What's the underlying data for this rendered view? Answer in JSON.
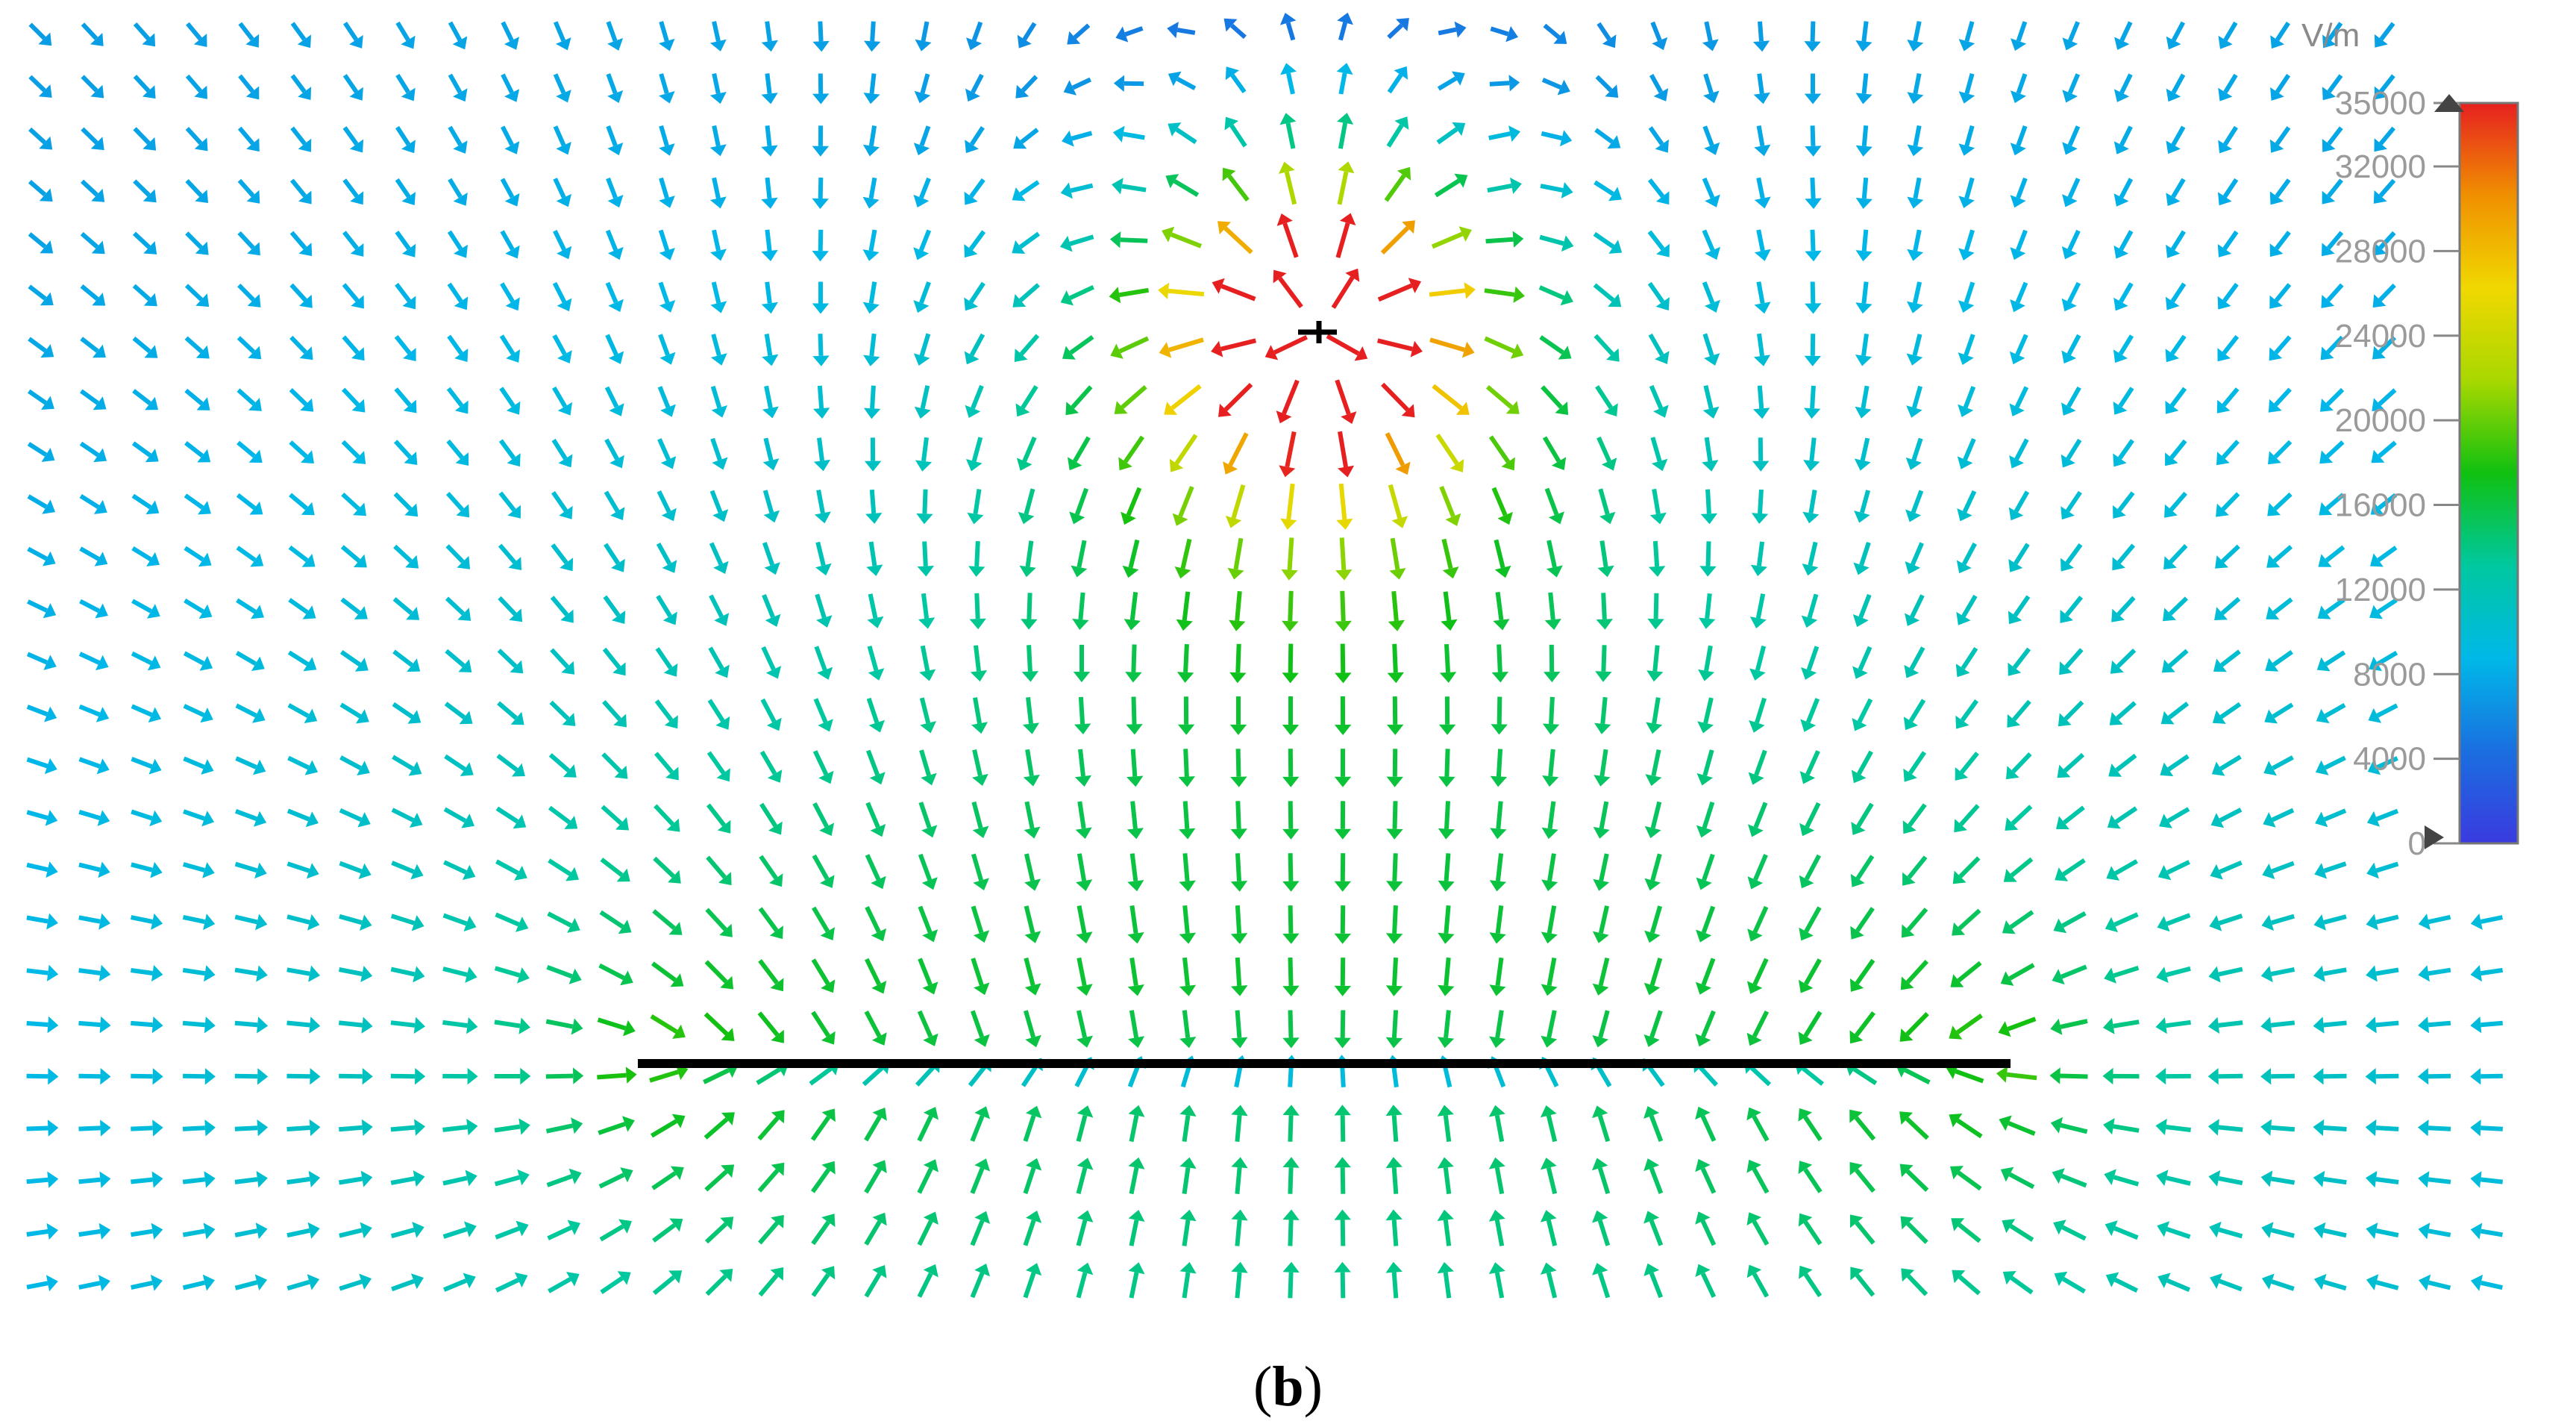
{
  "chart_data": {
    "type": "vector field",
    "colorbar": {
      "unit": "V/m",
      "min": 0,
      "max": 35000,
      "ticks": [
        35000,
        32000,
        28000,
        24000,
        20000,
        16000,
        12000,
        8000,
        4000,
        0
      ],
      "colors": [
        "#3a3adf",
        "#1a6fe0",
        "#00b8e8",
        "#00c8a0",
        "#10c010",
        "#a8d800",
        "#f0d800",
        "#f09000",
        "#e62020"
      ]
    },
    "objects": {
      "conductor_strip": "horizontal line conductor (black)",
      "point_source": "small source above strip (black)"
    },
    "field_pattern": {
      "above_strip": "arrows point downward toward the strip",
      "below_strip": "arrows point upward toward the strip",
      "near_source": "arrows point radially away from the source",
      "max_region": "near the source (red)",
      "strip_region": "green arrows between source and strip"
    }
  },
  "caption": {
    "open": "(",
    "letter": "b",
    "close": ")"
  }
}
